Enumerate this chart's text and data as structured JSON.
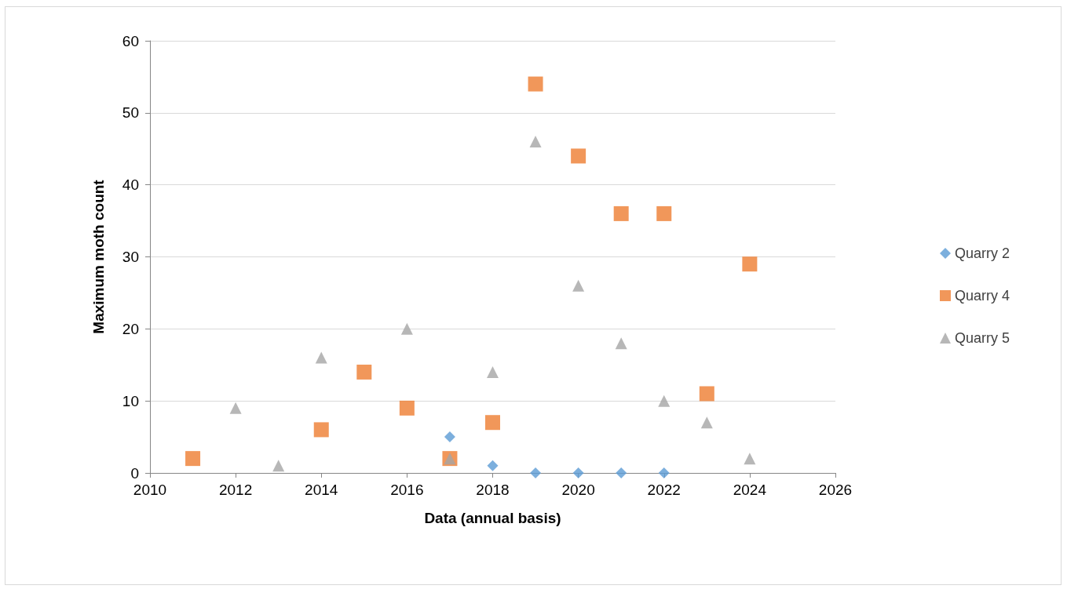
{
  "chart_data": {
    "type": "scatter",
    "xlabel": "Data (annual basis)",
    "ylabel": "Maximum moth count",
    "xlim": [
      2010,
      2026
    ],
    "xticks": [
      2010,
      2012,
      2014,
      2016,
      2018,
      2020,
      2022,
      2024,
      2026
    ],
    "ylim": [
      0,
      60
    ],
    "yticks": [
      0,
      10,
      20,
      30,
      40,
      50,
      60
    ],
    "grid": "y",
    "legend": "right",
    "series": [
      {
        "name": "Quarry 2",
        "color": "#5b9bd5",
        "marker": "diamond",
        "x": [
          2017,
          2018,
          2019,
          2020,
          2021,
          2022
        ],
        "values": [
          5,
          1,
          0,
          0,
          0,
          0
        ]
      },
      {
        "name": "Quarry 4",
        "color": "#ed7d31",
        "marker": "square",
        "x": [
          2011,
          2014,
          2015,
          2016,
          2017,
          2018,
          2019,
          2020,
          2021,
          2022,
          2023,
          2024
        ],
        "values": [
          2,
          6,
          14,
          9,
          2,
          7,
          54,
          44,
          36,
          36,
          11,
          29
        ]
      },
      {
        "name": "Quarry 5",
        "color": "#a5a5a5",
        "marker": "triangle",
        "x": [
          2012,
          2013,
          2014,
          2016,
          2017,
          2018,
          2019,
          2020,
          2021,
          2022,
          2023,
          2024
        ],
        "values": [
          9,
          1,
          16,
          20,
          2,
          14,
          46,
          26,
          18,
          10,
          7,
          2
        ]
      }
    ]
  }
}
